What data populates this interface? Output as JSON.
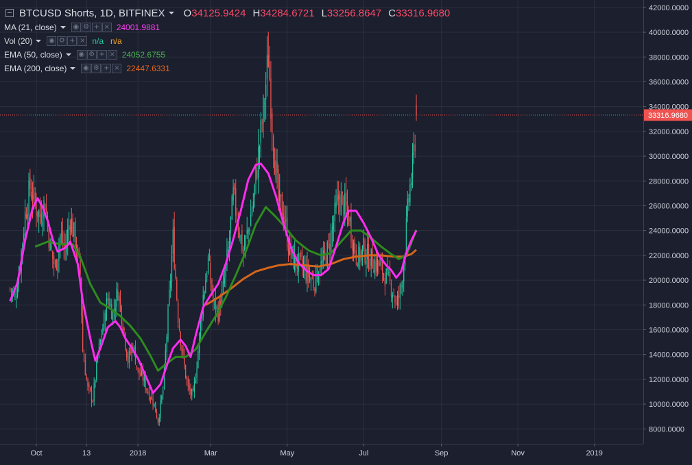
{
  "legend": {
    "title": "BTCUSD Shorts, 1D, BITFINEX",
    "ohlc": {
      "o_label": "O",
      "o": "34125.9424",
      "h_label": "H",
      "h": "34284.6721",
      "l_label": "L",
      "l": "33256.8647",
      "c_label": "C",
      "c": "33316.9680"
    },
    "indicators": [
      {
        "name": "MA (21, close)",
        "values": [
          "24001.9881"
        ]
      },
      {
        "name": "Vol (20)",
        "values": [
          "n/a",
          "n/a"
        ]
      },
      {
        "name": "EMA (50, close)",
        "values": [
          "24052.6755"
        ]
      },
      {
        "name": "EMA (200, close)",
        "values": [
          "22447.6331"
        ]
      }
    ]
  },
  "colors": {
    "background": "#1b1f2e",
    "grid": "#2b3040",
    "up": "#26c6a1",
    "down": "#ef5350",
    "ma21": "#ff2cf0",
    "ema50": "#2e8b1e",
    "ema200": "#d4661c",
    "price_line": "#ef5350"
  },
  "price_label": "33316.9680",
  "chart_data": {
    "type": "candlestick",
    "y_range": [
      6800,
      42600
    ],
    "y_ticks": [
      "8000.0000",
      "10000.0000",
      "12000.0000",
      "14000.0000",
      "16000.0000",
      "18000.0000",
      "20000.0000",
      "22000.0000",
      "24000.0000",
      "26000.0000",
      "28000.0000",
      "30000.0000",
      "32000.0000",
      "34000.0000",
      "36000.0000",
      "38000.0000",
      "40000.0000",
      "42000.0000"
    ],
    "x_ticks": [
      {
        "label": "Oct",
        "day": 21
      },
      {
        "label": "13",
        "day": 61
      },
      {
        "label": "2018",
        "day": 102
      },
      {
        "label": "Mar",
        "day": 160
      },
      {
        "label": "May",
        "day": 221
      },
      {
        "label": "Jul",
        "day": 282
      },
      {
        "label": "Sep",
        "day": 344
      },
      {
        "label": "Nov",
        "day": 405
      },
      {
        "label": "2019",
        "day": 466
      }
    ],
    "x_range": [
      -8,
      505
    ],
    "last_price": 33316.968,
    "anchors": [
      [
        0,
        19300
      ],
      [
        4,
        18600
      ],
      [
        8,
        21300
      ],
      [
        12,
        25300
      ],
      [
        16,
        27500
      ],
      [
        20,
        26100
      ],
      [
        24,
        25200
      ],
      [
        28,
        26400
      ],
      [
        32,
        22600
      ],
      [
        36,
        21000
      ],
      [
        40,
        23600
      ],
      [
        44,
        22400
      ],
      [
        48,
        25100
      ],
      [
        52,
        23200
      ],
      [
        56,
        20500
      ],
      [
        58,
        14300
      ],
      [
        62,
        11200
      ],
      [
        66,
        10400
      ],
      [
        70,
        13900
      ],
      [
        74,
        16200
      ],
      [
        78,
        18600
      ],
      [
        82,
        17300
      ],
      [
        86,
        19200
      ],
      [
        90,
        16600
      ],
      [
        94,
        13500
      ],
      [
        98,
        14800
      ],
      [
        102,
        12600
      ],
      [
        106,
        12100
      ],
      [
        110,
        11000
      ],
      [
        114,
        10300
      ],
      [
        118,
        8700
      ],
      [
        122,
        11100
      ],
      [
        126,
        17100
      ],
      [
        130,
        23400
      ],
      [
        134,
        17100
      ],
      [
        138,
        13600
      ],
      [
        142,
        11200
      ],
      [
        146,
        10600
      ],
      [
        150,
        14300
      ],
      [
        154,
        18700
      ],
      [
        158,
        21600
      ],
      [
        162,
        18200
      ],
      [
        166,
        17400
      ],
      [
        170,
        19300
      ],
      [
        174,
        22400
      ],
      [
        178,
        26800
      ],
      [
        182,
        24600
      ],
      [
        186,
        22200
      ],
      [
        190,
        24100
      ],
      [
        194,
        26400
      ],
      [
        198,
        30100
      ],
      [
        202,
        33600
      ],
      [
        206,
        38100
      ],
      [
        210,
        31000
      ],
      [
        214,
        26300
      ],
      [
        218,
        25600
      ],
      [
        222,
        22800
      ],
      [
        226,
        21600
      ],
      [
        230,
        21300
      ],
      [
        234,
        20900
      ],
      [
        238,
        20400
      ],
      [
        242,
        19800
      ],
      [
        246,
        20800
      ],
      [
        250,
        21500
      ],
      [
        254,
        22600
      ],
      [
        258,
        24700
      ],
      [
        262,
        26600
      ],
      [
        266,
        26100
      ],
      [
        270,
        25200
      ],
      [
        274,
        22800
      ],
      [
        278,
        21800
      ],
      [
        282,
        22500
      ],
      [
        286,
        21800
      ],
      [
        290,
        21500
      ],
      [
        294,
        21200
      ],
      [
        298,
        20600
      ],
      [
        302,
        19900
      ],
      [
        306,
        19000
      ],
      [
        308,
        17900
      ],
      [
        312,
        19500
      ],
      [
        315,
        22800
      ],
      [
        318,
        26800
      ],
      [
        321,
        29000
      ],
      [
        323,
        31500
      ],
      [
        324,
        33700
      ]
    ],
    "ma21": [
      [
        0,
        18300
      ],
      [
        6,
        19800
      ],
      [
        12,
        23200
      ],
      [
        18,
        25800
      ],
      [
        22,
        26600
      ],
      [
        26,
        25900
      ],
      [
        30,
        24800
      ],
      [
        34,
        23300
      ],
      [
        38,
        22300
      ],
      [
        44,
        22600
      ],
      [
        48,
        23100
      ],
      [
        54,
        21300
      ],
      [
        58,
        18300
      ],
      [
        64,
        15300
      ],
      [
        68,
        13500
      ],
      [
        72,
        14500
      ],
      [
        78,
        16200
      ],
      [
        84,
        16700
      ],
      [
        88,
        16200
      ],
      [
        92,
        15300
      ],
      [
        96,
        14700
      ],
      [
        102,
        13700
      ],
      [
        108,
        12300
      ],
      [
        114,
        10900
      ],
      [
        120,
        11600
      ],
      [
        126,
        13400
      ],
      [
        130,
        14500
      ],
      [
        136,
        15200
      ],
      [
        140,
        14700
      ],
      [
        144,
        13800
      ],
      [
        148,
        15500
      ],
      [
        154,
        17800
      ],
      [
        160,
        18800
      ],
      [
        166,
        19700
      ],
      [
        172,
        21300
      ],
      [
        178,
        23300
      ],
      [
        184,
        25600
      ],
      [
        190,
        28100
      ],
      [
        196,
        29300
      ],
      [
        200,
        29400
      ],
      [
        206,
        28600
      ],
      [
        212,
        26800
      ],
      [
        218,
        24600
      ],
      [
        224,
        22600
      ],
      [
        230,
        21400
      ],
      [
        236,
        20800
      ],
      [
        242,
        20400
      ],
      [
        248,
        20400
      ],
      [
        254,
        20900
      ],
      [
        260,
        22700
      ],
      [
        266,
        24700
      ],
      [
        270,
        25600
      ],
      [
        276,
        25600
      ],
      [
        282,
        24600
      ],
      [
        288,
        23400
      ],
      [
        294,
        22000
      ],
      [
        300,
        21200
      ],
      [
        304,
        20800
      ],
      [
        308,
        20200
      ],
      [
        312,
        20700
      ],
      [
        316,
        22200
      ],
      [
        320,
        23200
      ],
      [
        324,
        24000
      ]
    ],
    "ema50_start": 20,
    "ema50_end": [
      324,
      24052.6755
    ],
    "ema200_start": 156,
    "ema200_end": [
      324,
      22447.6331
    ],
    "ema200_path": [
      [
        156,
        18000
      ],
      [
        166,
        18600
      ],
      [
        176,
        19300
      ],
      [
        186,
        20100
      ],
      [
        196,
        20700
      ],
      [
        206,
        21000
      ],
      [
        214,
        21200
      ],
      [
        224,
        21300
      ],
      [
        234,
        21200
      ],
      [
        246,
        21100
      ],
      [
        256,
        21300
      ],
      [
        266,
        21700
      ],
      [
        276,
        21900
      ],
      [
        286,
        22000
      ],
      [
        296,
        22000
      ],
      [
        306,
        21900
      ],
      [
        314,
        21900
      ],
      [
        320,
        22100
      ],
      [
        324,
        22447.6331
      ]
    ],
    "ema50_path": [
      [
        20,
        22700
      ],
      [
        30,
        23100
      ],
      [
        40,
        22900
      ],
      [
        50,
        22900
      ],
      [
        56,
        21900
      ],
      [
        64,
        19700
      ],
      [
        72,
        18200
      ],
      [
        80,
        17700
      ],
      [
        88,
        17100
      ],
      [
        96,
        16300
      ],
      [
        104,
        15300
      ],
      [
        112,
        13900
      ],
      [
        118,
        12700
      ],
      [
        124,
        13200
      ],
      [
        132,
        13800
      ],
      [
        140,
        13800
      ],
      [
        148,
        14400
      ],
      [
        156,
        15800
      ],
      [
        164,
        17100
      ],
      [
        172,
        18600
      ],
      [
        180,
        20400
      ],
      [
        188,
        22300
      ],
      [
        196,
        24500
      ],
      [
        204,
        25900
      ],
      [
        212,
        25100
      ],
      [
        220,
        24200
      ],
      [
        228,
        23200
      ],
      [
        238,
        22400
      ],
      [
        248,
        22000
      ],
      [
        256,
        22200
      ],
      [
        264,
        23100
      ],
      [
        272,
        24000
      ],
      [
        280,
        24000
      ],
      [
        288,
        23400
      ],
      [
        296,
        22700
      ],
      [
        304,
        22100
      ],
      [
        310,
        21700
      ],
      [
        316,
        22000
      ],
      [
        320,
        23000
      ],
      [
        324,
        24052.6755
      ]
    ]
  }
}
